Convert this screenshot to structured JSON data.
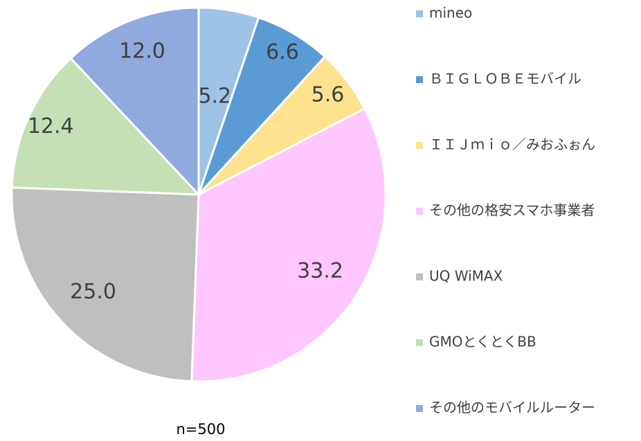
{
  "chart_data": {
    "type": "pie",
    "categories": [
      "mineo",
      "ＢＩＧＬＯＢＥモバイル",
      "ＩＩＪｍｉｏ／みおふぉん",
      "その他の格安スマホ事業者",
      "UQ WiMAX",
      "GMOとくとくBB",
      "その他のモバイルルーター"
    ],
    "values": [
      5.2,
      6.6,
      5.6,
      33.2,
      25.0,
      12.4,
      12.0
    ],
    "value_labels": [
      "5.2",
      "6.6",
      "5.6",
      "33.2",
      "25.0",
      "12.4",
      "12.0"
    ],
    "colors": [
      "#9dc3e6",
      "#5b9bd5",
      "#ffe28f",
      "#ffc6ff",
      "#bfbfbf",
      "#c5e0b4",
      "#8faadc"
    ],
    "annotation": "n=500"
  }
}
